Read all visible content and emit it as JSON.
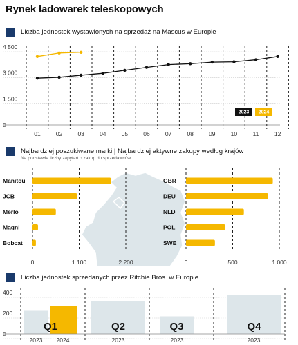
{
  "title": "Rynek ładowarek teleskopowych",
  "colors": {
    "navy": "#1a3a6b",
    "gold": "#f5b800",
    "black": "#111111",
    "light": "#dde6ea"
  },
  "section1": {
    "title": "Liczba jednostek wystawionych na sprzedaż na Mascus w Europie"
  },
  "section2": {
    "title": "Najbardziej poszukiwane marki | Najbardziej aktywne zakupy według krajów",
    "subtitle": "Na podstawie liczby zapytań o zakup do sprzedawców"
  },
  "section3": {
    "title": "Liczba jednostek sprzedanych przez Ritchie Bros. w Europie"
  },
  "chart_data": [
    {
      "type": "line",
      "x": [
        "01",
        "02",
        "03",
        "04",
        "05",
        "06",
        "07",
        "08",
        "09",
        "10",
        "11",
        "12"
      ],
      "ylim": [
        0,
        4500
      ],
      "yticks": [
        "0",
        "1 500",
        "3 000",
        "4 500"
      ],
      "series": [
        {
          "name": "2023",
          "color": "#111111",
          "values": [
            2700,
            2750,
            2870,
            2980,
            3150,
            3320,
            3480,
            3530,
            3620,
            3640,
            3760,
            3950
          ]
        },
        {
          "name": "2024",
          "color": "#f5b800",
          "values": [
            3950,
            4150,
            4190,
            null,
            null,
            null,
            null,
            null,
            null,
            null,
            null,
            null
          ]
        }
      ],
      "legend": "bottom-right",
      "grid": "vertical-dashed"
    },
    {
      "type": "bar",
      "orientation": "horizontal",
      "categories": [
        "Manitou",
        "JCB",
        "Merlo",
        "Magni",
        "Bobcat"
      ],
      "values": [
        1850,
        1050,
        550,
        130,
        80
      ],
      "xlim": [
        0,
        2200
      ],
      "xticks": [
        "0",
        "1 100",
        "2 200"
      ]
    },
    {
      "type": "bar",
      "orientation": "horizontal",
      "categories": [
        "GBR",
        "DEU",
        "NLD",
        "POL",
        "SWE"
      ],
      "values": [
        930,
        880,
        620,
        420,
        310
      ],
      "xlim": [
        0,
        1000
      ],
      "xticks": [
        "0",
        "500",
        "1 000"
      ]
    },
    {
      "type": "bar",
      "categories": [
        "Q1",
        "Q2",
        "Q3",
        "Q4"
      ],
      "ylim": [
        0,
        400
      ],
      "yticks": [
        "0",
        "200",
        "400"
      ],
      "series": [
        {
          "name": "2023",
          "color": "#dde6ea",
          "values": [
            230,
            320,
            170,
            380
          ]
        },
        {
          "name": "2024",
          "color": "#f5b800",
          "values": [
            270,
            null,
            null,
            null
          ]
        }
      ],
      "xlabels": [
        "2023",
        "2024",
        "2023",
        "2023",
        "2023"
      ]
    }
  ]
}
